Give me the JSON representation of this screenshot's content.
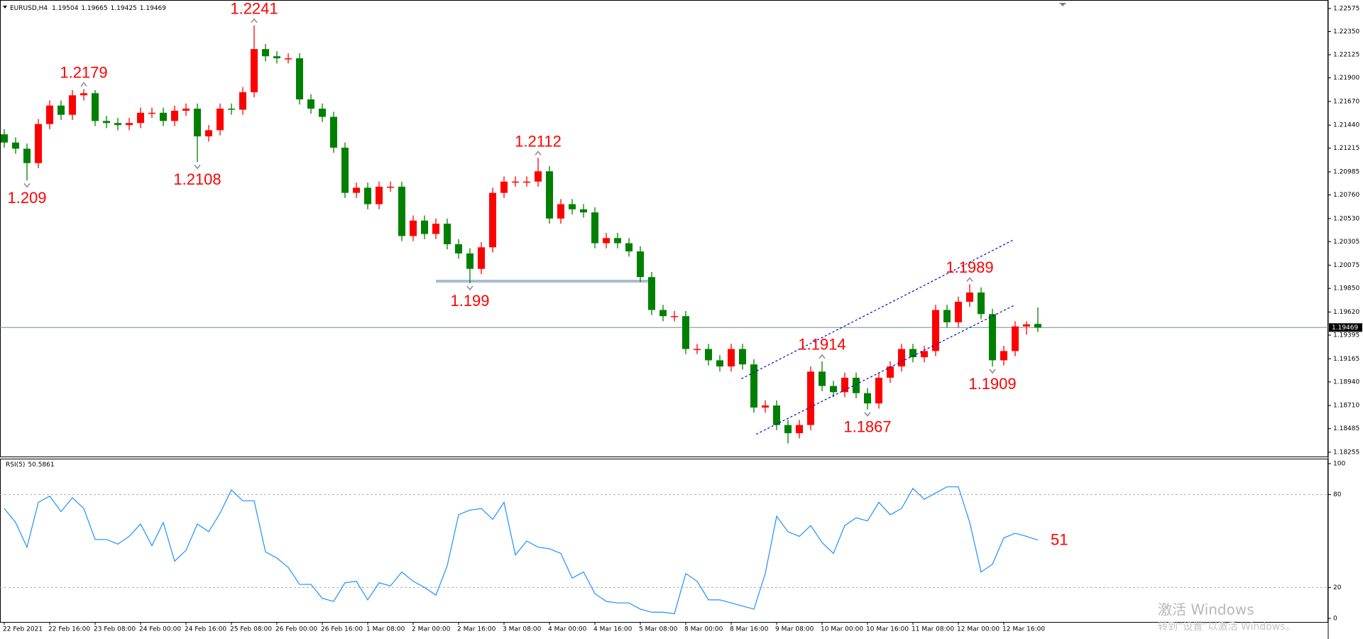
{
  "chart_data": {
    "type": "candlestick",
    "title": "EURUSD,H4",
    "categories": [
      "22 Feb 2021",
      null,
      null,
      null,
      "22 Feb 16:00",
      null,
      null,
      null,
      "23 Feb 08:00",
      null,
      null,
      null,
      "24 Feb 00:00",
      null,
      null,
      null,
      "24 Feb 16:00",
      null,
      null,
      null,
      "25 Feb 08:00",
      null,
      null,
      null,
      "26 Feb 00:00",
      null,
      null,
      null,
      "26 Feb 16:00",
      null,
      null,
      null,
      "1 Mar 08:00",
      null,
      null,
      null,
      "2 Mar 00:00",
      null,
      null,
      null,
      "2 Mar 16:00",
      null,
      null,
      null,
      "3 Mar 08:00",
      null,
      null,
      null,
      "4 Mar 00:00",
      null,
      null,
      null,
      "4 Mar 16:00",
      null,
      null,
      null,
      "5 Mar 08:00",
      null,
      null,
      null,
      "8 Mar 00:00",
      null,
      null,
      null,
      "8 Mar 16:00",
      null,
      null,
      null,
      "9 Mar 08:00",
      null,
      null,
      null,
      "10 Mar 00:00",
      null,
      null,
      null,
      "10 Mar 16:00",
      null,
      null,
      null,
      "11 Mar 08:00",
      null,
      null,
      null,
      "12 Mar 00:00",
      null,
      null,
      null,
      "12 Mar 16:00",
      null,
      null,
      null
    ],
    "ohlc": [
      [
        1.2135,
        1.214,
        1.2122,
        1.2127
      ],
      [
        1.2127,
        1.2132,
        1.2116,
        1.2121
      ],
      [
        1.2121,
        1.2126,
        1.209,
        1.2107
      ],
      [
        1.2107,
        1.215,
        1.2102,
        1.2145
      ],
      [
        1.2145,
        1.2168,
        1.214,
        1.2163
      ],
      [
        1.2163,
        1.2168,
        1.2149,
        1.2154
      ],
      [
        1.2154,
        1.2178,
        1.2149,
        1.2173
      ],
      [
        1.2173,
        1.2179,
        1.2168,
        1.2175
      ],
      [
        1.2175,
        1.2178,
        1.2143,
        1.2148
      ],
      [
        1.2148,
        1.2153,
        1.2141,
        1.2146
      ],
      [
        1.2146,
        1.2151,
        1.2139,
        1.2144
      ],
      [
        1.2144,
        1.2151,
        1.2139,
        1.2146
      ],
      [
        1.2146,
        1.2161,
        1.2141,
        1.2156
      ],
      [
        1.2156,
        1.2161,
        1.2151,
        1.2156
      ],
      [
        1.2156,
        1.2161,
        1.2143,
        1.2148
      ],
      [
        1.2148,
        1.2163,
        1.2143,
        1.2158
      ],
      [
        1.2158,
        1.2165,
        1.2153,
        1.216
      ],
      [
        1.216,
        1.2165,
        1.2108,
        1.2133
      ],
      [
        1.2133,
        1.2144,
        1.2128,
        1.2139
      ],
      [
        1.2139,
        1.2165,
        1.2134,
        1.216
      ],
      [
        1.216,
        1.2165,
        1.2154,
        1.2159
      ],
      [
        1.2159,
        1.2181,
        1.2154,
        1.2176
      ],
      [
        1.2176,
        1.2241,
        1.2171,
        1.2218
      ],
      [
        1.2218,
        1.2223,
        1.2206,
        1.2211
      ],
      [
        1.2211,
        1.2216,
        1.2204,
        1.2209
      ],
      [
        1.2209,
        1.2214,
        1.2204,
        1.2209
      ],
      [
        1.2209,
        1.2214,
        1.2164,
        1.2169
      ],
      [
        1.2169,
        1.2174,
        1.2155,
        1.216
      ],
      [
        1.216,
        1.2165,
        1.2147,
        1.2152
      ],
      [
        1.2152,
        1.2157,
        1.2117,
        1.2122
      ],
      [
        1.2122,
        1.2127,
        1.2073,
        1.2078
      ],
      [
        1.2078,
        1.2088,
        1.2073,
        1.2083
      ],
      [
        1.2083,
        1.2088,
        1.2062,
        1.2067
      ],
      [
        1.2067,
        1.2089,
        1.2062,
        1.2084
      ],
      [
        1.2084,
        1.2089,
        1.2079,
        1.2084
      ],
      [
        1.2084,
        1.2089,
        1.2031,
        1.2036
      ],
      [
        1.2036,
        1.2056,
        1.2031,
        1.2051
      ],
      [
        1.2051,
        1.2056,
        1.2033,
        1.2038
      ],
      [
        1.2038,
        1.2053,
        1.2033,
        1.2048
      ],
      [
        1.2048,
        1.2053,
        1.2023,
        1.2028
      ],
      [
        1.2028,
        1.2033,
        1.2014,
        1.2019
      ],
      [
        1.2019,
        1.2024,
        1.199,
        1.2004
      ],
      [
        1.2004,
        1.203,
        1.1999,
        1.2025
      ],
      [
        1.2025,
        1.2083,
        1.202,
        1.2078
      ],
      [
        1.2078,
        1.2094,
        1.2073,
        1.2089
      ],
      [
        1.2089,
        1.2094,
        1.2084,
        1.2089
      ],
      [
        1.2089,
        1.2094,
        1.2084,
        1.2089
      ],
      [
        1.2089,
        1.2112,
        1.2084,
        1.2099
      ],
      [
        1.2099,
        1.2104,
        1.2048,
        1.2053
      ],
      [
        1.2053,
        1.2072,
        1.2048,
        1.2067
      ],
      [
        1.2067,
        1.2072,
        1.2057,
        1.2062
      ],
      [
        1.2062,
        1.2067,
        1.2054,
        1.2059
      ],
      [
        1.2059,
        1.2064,
        1.2024,
        1.2029
      ],
      [
        1.2029,
        1.2039,
        1.2024,
        1.2034
      ],
      [
        1.2034,
        1.2039,
        1.2024,
        1.2029
      ],
      [
        1.2029,
        1.2034,
        1.2016,
        1.2021
      ],
      [
        1.2021,
        1.2026,
        1.1991,
        1.1996
      ],
      [
        1.1996,
        1.2001,
        1.1959,
        1.1964
      ],
      [
        1.1964,
        1.1969,
        1.1953,
        1.1958
      ],
      [
        1.1958,
        1.1963,
        1.1953,
        1.1958
      ],
      [
        1.1958,
        1.1963,
        1.1921,
        1.1926
      ],
      [
        1.1926,
        1.1931,
        1.1921,
        1.1926
      ],
      [
        1.1926,
        1.1931,
        1.191,
        1.1915
      ],
      [
        1.1915,
        1.192,
        1.1904,
        1.1909
      ],
      [
        1.1909,
        1.1931,
        1.1904,
        1.1926
      ],
      [
        1.1926,
        1.1931,
        1.1906,
        1.1911
      ],
      [
        1.1911,
        1.1916,
        1.1864,
        1.1869
      ],
      [
        1.1869,
        1.1876,
        1.1864,
        1.1871
      ],
      [
        1.1871,
        1.1876,
        1.1847,
        1.1852
      ],
      [
        1.1852,
        1.1857,
        1.1834,
        1.1844
      ],
      [
        1.1844,
        1.1857,
        1.1839,
        1.1852
      ],
      [
        1.1852,
        1.1909,
        1.1847,
        1.1904
      ],
      [
        1.1904,
        1.1914,
        1.1885,
        1.189
      ],
      [
        1.189,
        1.1895,
        1.1879,
        1.1884
      ],
      [
        1.1884,
        1.1903,
        1.1879,
        1.1898
      ],
      [
        1.1898,
        1.1903,
        1.1878,
        1.1883
      ],
      [
        1.1883,
        1.1888,
        1.1867,
        1.1873
      ],
      [
        1.1873,
        1.1903,
        1.1868,
        1.1898
      ],
      [
        1.1898,
        1.1914,
        1.1893,
        1.1909
      ],
      [
        1.1909,
        1.1931,
        1.1904,
        1.1926
      ],
      [
        1.1926,
        1.1931,
        1.1913,
        1.1918
      ],
      [
        1.1918,
        1.1929,
        1.1913,
        1.1924
      ],
      [
        1.1924,
        1.1969,
        1.1919,
        1.1964
      ],
      [
        1.1964,
        1.1969,
        1.1947,
        1.1952
      ],
      [
        1.1952,
        1.1977,
        1.1947,
        1.1972
      ],
      [
        1.1972,
        1.1989,
        1.1967,
        1.1981
      ],
      [
        1.1981,
        1.1986,
        1.1955,
        1.196
      ],
      [
        1.196,
        1.1965,
        1.1909,
        1.1915
      ],
      [
        1.1915,
        1.1929,
        1.191,
        1.1924
      ],
      [
        1.1924,
        1.1953,
        1.1919,
        1.1948
      ],
      [
        1.1948,
        1.1953,
        1.194,
        1.195
      ],
      [
        1.19504,
        1.19665,
        1.19425,
        1.19469
      ]
    ],
    "up_color": "#ff0000",
    "down_color": "#008000",
    "ylim": [
      1.1822,
      1.2263
    ],
    "yticks": [
      1.22575,
      {
        "value": 1.2235,
        "label": "1.22350"
      },
      1.22125,
      {
        "value": 1.219,
        "label": "1.21900"
      },
      {
        "value": 1.2167,
        "label": "1.21670"
      },
      {
        "value": 1.2144,
        "label": "1.21440"
      },
      1.21215,
      1.20985,
      {
        "value": 1.2076,
        "label": "1.20760"
      },
      {
        "value": 1.2053,
        "label": "1.20530"
      },
      1.20305,
      1.20075,
      {
        "value": 1.1985,
        "label": "1.19850"
      },
      {
        "value": 1.1962,
        "label": "1.19620"
      },
      1.19395,
      1.19165,
      {
        "value": 1.1894,
        "label": "1.18940"
      },
      {
        "value": 1.1871,
        "label": "1.18710"
      },
      1.18485,
      1.18255
    ],
    "annotations": [
      {
        "value": 1.2241,
        "index": 22,
        "at": "high"
      },
      {
        "value": 1.2179,
        "index": 7,
        "at": "high"
      },
      {
        "value": 1.209,
        "index": 2,
        "at": "low"
      },
      {
        "value": 1.2108,
        "index": 17,
        "at": "low"
      },
      {
        "value": 1.2112,
        "index": 47,
        "at": "high"
      },
      {
        "value": 1.199,
        "index": 41,
        "at": "low"
      },
      {
        "value": 1.1914,
        "index": 72,
        "at": "high"
      },
      {
        "value": 1.1867,
        "index": 76,
        "at": "low"
      },
      {
        "value": 1.1989,
        "index": 85,
        "at": "high"
      },
      {
        "value": 1.1909,
        "index": 87,
        "at": "low"
      }
    ],
    "levels": [
      {
        "value": 1.1992,
        "from": 38,
        "to": 57,
        "color": "#a9bdd2"
      }
    ],
    "trendlines": [
      {
        "points": [
          [
            64.9,
            1.1897
          ],
          [
            88.8,
            1.2032
          ]
        ],
        "color": "#0000cd"
      },
      {
        "points": [
          [
            66.2,
            1.1843
          ],
          [
            89,
            1.1969
          ]
        ],
        "color": "#0000cd"
      }
    ],
    "indicator": {
      "type": "line",
      "name": "RSI(5)",
      "color": "#1e90ff",
      "label": "51",
      "values": [
        71,
        62,
        46,
        75,
        79,
        69,
        78,
        71,
        51,
        51,
        48,
        53,
        61,
        47,
        62,
        37,
        44,
        61,
        56,
        68,
        83,
        76,
        76,
        43,
        39,
        33,
        22,
        22,
        13,
        11,
        23,
        24,
        12,
        23,
        21,
        30,
        24,
        20,
        15,
        34,
        67,
        70,
        71,
        64,
        75,
        41,
        50,
        46,
        45,
        42,
        26,
        30,
        16,
        11,
        10,
        10,
        6,
        4,
        4,
        3,
        29,
        24,
        12,
        12,
        10,
        8,
        6,
        29,
        66,
        56,
        53,
        60,
        49,
        42,
        60,
        65,
        63,
        75,
        67,
        71,
        84,
        77,
        81,
        85,
        85,
        62,
        30,
        35,
        52,
        55,
        53,
        50.5861
      ],
      "ylim": [
        0,
        100
      ],
      "yticks": [
        0,
        20,
        80,
        100
      ]
    },
    "watermark": [
      "激活 Windows",
      "转到“设置”以激活 Windows。"
    ]
  }
}
